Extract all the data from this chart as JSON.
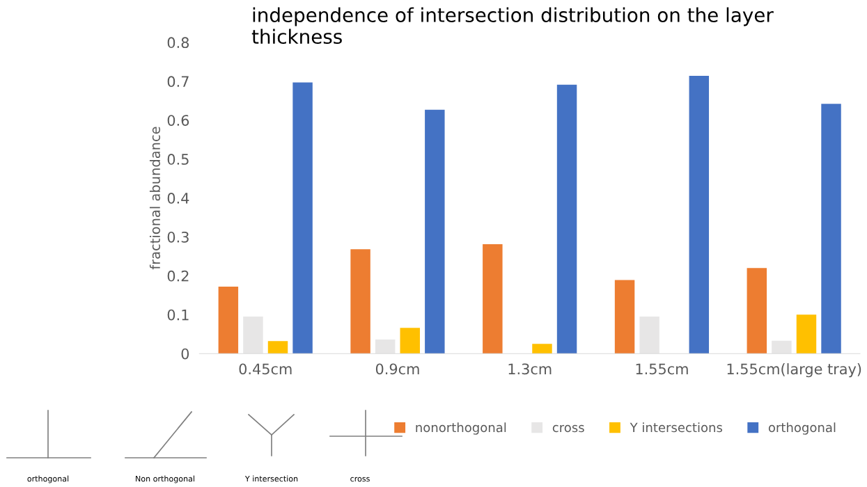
{
  "chart_data": {
    "type": "bar",
    "title": "independence of intersection distribution on the layer thickness",
    "ylabel": "fractional abundance",
    "categories": [
      "0.45cm",
      "0.9cm",
      "1.3cm",
      "1.55cm",
      "1.55cm(large tray)"
    ],
    "series": [
      {
        "name": "nonorthogonal",
        "color": "#ed7d31",
        "values": [
          0.172,
          0.268,
          0.281,
          0.189,
          0.22
        ]
      },
      {
        "name": "cross",
        "color": "#e7e6e6",
        "values": [
          0.095,
          0.036,
          0,
          0.095,
          0.033
        ]
      },
      {
        "name": "Y intersections",
        "color": "#ffc000",
        "values": [
          0.032,
          0.066,
          0.025,
          0,
          0.1
        ]
      },
      {
        "name": "orthogonal",
        "color": "#4472c4",
        "values": [
          0.697,
          0.627,
          0.691,
          0.714,
          0.642
        ]
      }
    ],
    "ylim": [
      0,
      0.8
    ],
    "yticks": [
      0,
      0.1,
      0.2,
      0.3,
      0.4,
      0.5,
      0.6,
      0.7,
      0.8
    ],
    "grid": false,
    "legend": "bottom",
    "annotations": [
      "orthogonal",
      "Non orthogonal",
      "Y intersection",
      "cross"
    ]
  }
}
